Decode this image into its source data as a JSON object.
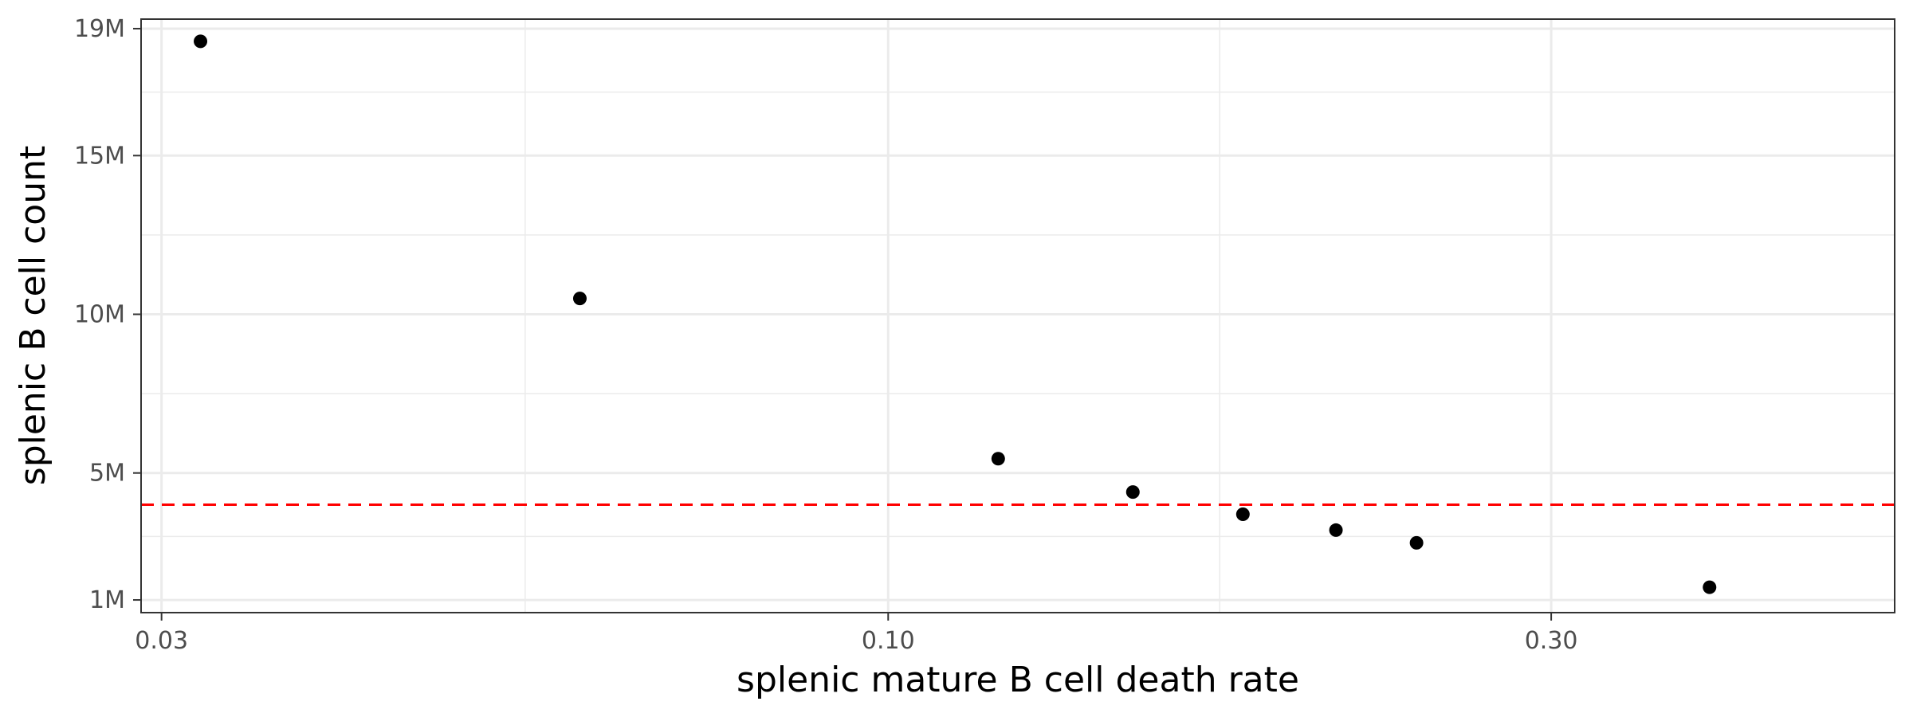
{
  "chart_data": {
    "type": "scatter",
    "title": "",
    "xlabel": "splenic mature B cell death rate",
    "ylabel": "splenic B cell count",
    "x_scale": "log10",
    "xlim": [
      0.029,
      0.53
    ],
    "ylim": [
      0.6,
      19.3
    ],
    "x_ticks": [
      {
        "value": 0.03,
        "label": "0.03"
      },
      {
        "value": 0.1,
        "label": "0.10"
      },
      {
        "value": 0.3,
        "label": "0.30"
      }
    ],
    "x_minor_ticks": [
      0.0548,
      0.1732
    ],
    "y_unit": "millions",
    "y_ticks": [
      {
        "value": 1,
        "label": "1M"
      },
      {
        "value": 5,
        "label": "5M"
      },
      {
        "value": 10,
        "label": "10M"
      },
      {
        "value": 15,
        "label": "15M"
      },
      {
        "value": 19,
        "label": "19M"
      }
    ],
    "y_minor_ticks": [
      3,
      7.5,
      12.5,
      17
    ],
    "grid": true,
    "reference_line": {
      "y": 4.0,
      "style": "dashed",
      "color": "#ff0000"
    },
    "points": [
      {
        "x": 0.032,
        "y": 18.6
      },
      {
        "x": 0.06,
        "y": 10.5
      },
      {
        "x": 0.12,
        "y": 5.45
      },
      {
        "x": 0.15,
        "y": 4.4
      },
      {
        "x": 0.18,
        "y": 3.7
      },
      {
        "x": 0.21,
        "y": 3.2
      },
      {
        "x": 0.24,
        "y": 2.8
      },
      {
        "x": 0.39,
        "y": 1.4
      }
    ],
    "colors": {
      "points": "#000000",
      "grid": "#ebebeb",
      "panel_border": "#333333"
    }
  }
}
